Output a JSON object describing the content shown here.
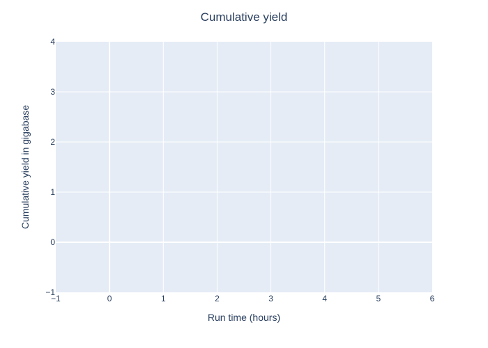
{
  "chart_data": {
    "type": "line",
    "title": "Cumulative yield",
    "xlabel": "Run time (hours)",
    "ylabel": "Cumulative yield in gigabase",
    "xlim": [
      -1,
      6
    ],
    "ylim": [
      -1,
      4
    ],
    "x_ticks": [
      -1,
      0,
      1,
      2,
      3,
      4,
      5,
      6
    ],
    "x_tick_labels": [
      "−1",
      "0",
      "1",
      "2",
      "3",
      "4",
      "5",
      "6"
    ],
    "y_ticks": [
      -1,
      0,
      1,
      2,
      3,
      4
    ],
    "y_tick_labels": [
      "−1",
      "0",
      "1",
      "2",
      "3",
      "4"
    ],
    "series": [],
    "grid": true,
    "legend": "none"
  },
  "colors": {
    "plot_background": "#e5ecf6",
    "grid": "#ffffff",
    "text": "#2a3f5f"
  }
}
